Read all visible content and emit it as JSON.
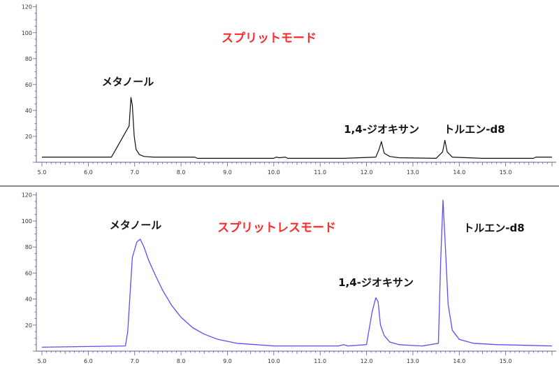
{
  "colors": {
    "mode_title": "#ff2a2a",
    "split_trace": "#111111",
    "splitless_trace": "#5b4dff",
    "axis": "#5f5f9a"
  },
  "chart_data": [
    {
      "type": "line",
      "title": "スプリットモード",
      "xlim": [
        5.0,
        16.0
      ],
      "ylim": [
        0,
        122
      ],
      "grid": false,
      "x_ticks": [
        "5.0",
        "6.0",
        "7.0",
        "8.0",
        "9.0",
        "10.0",
        "11.0",
        "12.0",
        "13.0",
        "14.0",
        "15.0"
      ],
      "y_ticks": [
        "20",
        "40",
        "60",
        "80",
        "100",
        "120"
      ],
      "annotations": [
        {
          "text": "メタノール",
          "x": 7.0,
          "y": 68
        },
        {
          "text": "1,4-ジオキサン",
          "x": 12.0,
          "y": 23
        },
        {
          "text": "トルエン-d8",
          "x": 14.0,
          "y": 23
        }
      ],
      "series": [
        {
          "x": [
            5.0,
            6.5,
            6.88,
            6.92,
            6.95,
            6.99,
            7.03,
            7.1,
            7.2,
            7.4,
            8.0,
            8.3,
            8.35,
            8.6,
            9.5,
            10.0,
            10.05,
            10.12,
            10.25,
            10.3,
            11.5,
            12.2,
            12.27,
            12.32,
            12.38,
            12.5,
            12.7,
            13.5,
            13.64,
            13.69,
            13.74,
            13.85,
            14.5,
            15.6,
            15.65,
            16.0
          ],
          "y": [
            4,
            4,
            28,
            50,
            44,
            20,
            10,
            6,
            4.5,
            4,
            4,
            4,
            3,
            3,
            3,
            3,
            4,
            3.5,
            4,
            3,
            3,
            4,
            10,
            16,
            7,
            4.5,
            3.5,
            3,
            8,
            17,
            8,
            4,
            3,
            3,
            4,
            4
          ]
        }
      ]
    },
    {
      "type": "line",
      "title": "スプリットレスモード",
      "xlim": [
        5.0,
        16.0
      ],
      "ylim": [
        0,
        122
      ],
      "grid": false,
      "x_ticks": [
        "5.0",
        "6.0",
        "7.0",
        "8.0",
        "9.0",
        "10.0",
        "11.0",
        "12.0",
        "13.0",
        "14.0",
        "15.0"
      ],
      "y_ticks": [
        "20",
        "40",
        "60",
        "80",
        "100",
        "120"
      ],
      "annotations": [
        {
          "text": "メタノール",
          "x": 7.2,
          "y": 98
        },
        {
          "text": "1,4-ジオキサン",
          "x": 12.0,
          "y": 50
        },
        {
          "text": "トルエン-d8",
          "x": 14.0,
          "y": 94
        }
      ],
      "series": [
        {
          "x": [
            5.0,
            6.8,
            6.85,
            6.95,
            7.05,
            7.12,
            7.2,
            7.3,
            7.45,
            7.6,
            7.8,
            8.0,
            8.25,
            8.5,
            8.8,
            9.2,
            9.6,
            10.0,
            11.0,
            11.4,
            11.5,
            11.6,
            12.0,
            12.12,
            12.2,
            12.25,
            12.3,
            12.38,
            12.5,
            12.7,
            12.9,
            13.2,
            13.55,
            13.6,
            13.65,
            13.7,
            13.76,
            13.85,
            14.0,
            14.3,
            14.8,
            16.0
          ],
          "y": [
            3,
            4,
            15,
            72,
            84,
            86,
            80,
            70,
            58,
            47,
            35,
            26,
            18,
            13,
            9,
            6,
            5,
            4,
            4,
            4,
            5,
            4,
            5,
            30,
            41,
            38,
            20,
            12,
            7,
            5,
            4.5,
            4,
            6,
            70,
            116,
            80,
            36,
            16,
            9,
            6,
            5,
            4
          ]
        }
      ]
    }
  ]
}
